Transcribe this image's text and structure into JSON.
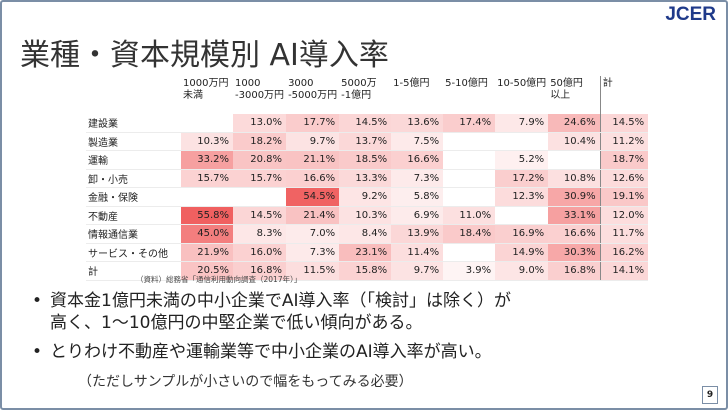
{
  "logo": "JCER",
  "title": "業種・資本規模別 AI導入率",
  "table": {
    "headers": [
      "1000万円\n未満",
      "1000\n-3000万円",
      "3000\n-5000万円",
      "5000万\n-1億円",
      "1-5億円",
      "5-10億円",
      "10-50億円",
      "50億円\n以上",
      "計"
    ],
    "rows": [
      {
        "label": "建設業",
        "values": [
          "",
          "13.0%",
          "17.7%",
          "14.5%",
          "13.6%",
          "17.4%",
          "7.9%",
          "24.6%",
          "14.5%"
        ]
      },
      {
        "label": "製造業",
        "values": [
          "10.3%",
          "18.2%",
          "9.7%",
          "13.7%",
          "7.5%",
          "",
          "",
          "10.4%",
          "11.2%"
        ]
      },
      {
        "label": "運輸",
        "values": [
          "33.2%",
          "20.8%",
          "21.1%",
          "18.5%",
          "16.6%",
          "",
          "5.2%",
          "",
          "18.7%"
        ]
      },
      {
        "label": "卸・小売",
        "values": [
          "15.7%",
          "15.7%",
          "16.6%",
          "13.3%",
          "7.3%",
          "",
          "17.2%",
          "10.8%",
          "12.6%"
        ]
      },
      {
        "label": "金融・保険",
        "values": [
          "",
          "",
          "54.5%",
          "9.2%",
          "5.8%",
          "",
          "12.3%",
          "30.9%",
          "19.1%"
        ]
      },
      {
        "label": "不動産",
        "values": [
          "55.8%",
          "14.5%",
          "21.4%",
          "10.3%",
          "6.9%",
          "11.0%",
          "",
          "33.1%",
          "12.0%"
        ]
      },
      {
        "label": "情報通信業",
        "values": [
          "45.0%",
          "8.3%",
          "7.0%",
          "8.4%",
          "13.9%",
          "18.4%",
          "16.9%",
          "16.6%",
          "11.7%"
        ]
      },
      {
        "label": "サービス・その他",
        "values": [
          "21.9%",
          "16.0%",
          "7.3%",
          "23.1%",
          "11.4%",
          "",
          "14.9%",
          "30.3%",
          "16.2%"
        ]
      },
      {
        "label": "計",
        "values": [
          "20.5%",
          "16.8%",
          "11.5%",
          "15.8%",
          "9.7%",
          "3.9%",
          "9.0%",
          "16.8%",
          "14.1%"
        ]
      }
    ]
  },
  "source": "（資料）総務省「通信利用動向調査（2017年）」",
  "bullets": [
    {
      "dot": "•",
      "line1": "資本金1億円未満の中小企業でAI導入率（「検討」は除く）が",
      "line2": "高く、1～10億円の中堅企業で低い傾向がある。"
    },
    {
      "dot": "•",
      "line1": "とりわけ不動産や運輸業等で中小企業のAI導入率が高い。"
    }
  ],
  "note": "（ただしサンプルが小さいので幅をもってみる必要）",
  "page_number": "9",
  "colors": {
    "heat_max": "#f06060",
    "heat_min": "#ffffff",
    "accent": "#1f3a8a",
    "frame": "#7b8ea6"
  }
}
